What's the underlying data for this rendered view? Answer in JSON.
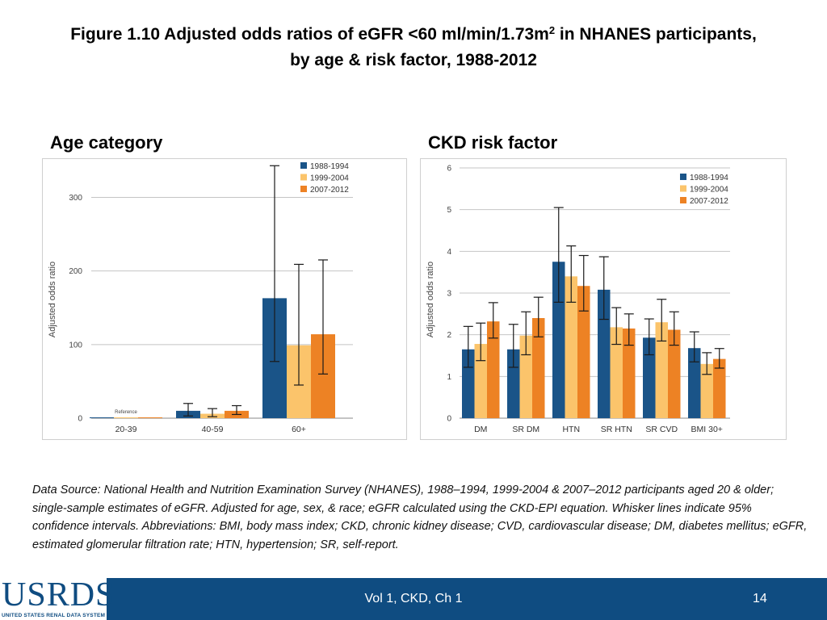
{
  "title": {
    "part1": "Figure 1.10 Adjusted odds ratios of eGFR <60 ml/min/1.73m",
    "sup": "2",
    "part2": " in NHANES participants,",
    "line2": "by age & risk factor, 1988-2012"
  },
  "panels": {
    "age_label": "Age category",
    "ckd_label": "CKD risk factor"
  },
  "chart_data": [
    {
      "type": "bar",
      "title": "Age category",
      "xlabel": "",
      "ylabel": "Adjusted odds ratio",
      "ylim": [
        0,
        340
      ],
      "yticks": [
        0,
        100,
        200,
        300
      ],
      "categories": [
        "20-39",
        "40-59",
        "60+"
      ],
      "series": [
        {
          "name": "1988-1994",
          "color": "#1a5488",
          "values": [
            1,
            10,
            163
          ],
          "ci_low": [
            null,
            3,
            77
          ],
          "ci_high": [
            null,
            20,
            343
          ]
        },
        {
          "name": "1999-2004",
          "color": "#fbc46b",
          "values": [
            1,
            6,
            99
          ],
          "ci_low": [
            null,
            2,
            45
          ],
          "ci_high": [
            null,
            13,
            209
          ]
        },
        {
          "name": "2007-2012",
          "color": "#ed8224",
          "values": [
            1,
            10,
            114
          ],
          "ci_low": [
            null,
            5,
            60
          ],
          "ci_high": [
            null,
            17,
            215
          ]
        }
      ],
      "annotations": [
        "Reference"
      ],
      "legend": "top-right"
    },
    {
      "type": "bar",
      "title": "CKD risk factor",
      "xlabel": "",
      "ylabel": "Adjusted odds ratio",
      "ylim": [
        0,
        6
      ],
      "yticks": [
        0,
        1,
        2,
        3,
        4,
        5,
        6
      ],
      "categories": [
        "DM",
        "SR DM",
        "HTN",
        "SR HTN",
        "SR CVD",
        "BMI 30+"
      ],
      "series": [
        {
          "name": "1988-1994",
          "color": "#1a5488",
          "values": [
            1.65,
            1.65,
            3.75,
            3.08,
            1.93,
            1.68
          ],
          "ci_low": [
            1.22,
            1.22,
            2.78,
            2.37,
            1.52,
            1.35
          ],
          "ci_high": [
            2.2,
            2.25,
            5.05,
            3.87,
            2.38,
            2.07
          ]
        },
        {
          "name": "1999-2004",
          "color": "#fbc46b",
          "values": [
            1.78,
            1.98,
            3.4,
            2.18,
            2.3,
            1.3
          ],
          "ci_low": [
            1.38,
            1.52,
            2.78,
            1.77,
            1.85,
            1.05
          ],
          "ci_high": [
            2.28,
            2.55,
            4.13,
            2.65,
            2.85,
            1.57
          ]
        },
        {
          "name": "2007-2012",
          "color": "#ed8224",
          "values": [
            2.32,
            2.4,
            3.17,
            2.15,
            2.12,
            1.42
          ],
          "ci_low": [
            1.92,
            1.95,
            2.57,
            1.75,
            1.75,
            1.2
          ],
          "ci_high": [
            2.77,
            2.9,
            3.9,
            2.5,
            2.55,
            1.67
          ]
        }
      ],
      "legend": "top-right"
    }
  ],
  "note": "Data Source: National Health and Nutrition Examination Survey (NHANES), 1988–1994, 1999-2004 & 2007–2012 participants aged 20 & older; single-sample estimates of eGFR. Adjusted for age, sex, & race; eGFR calculated using the CKD-EPI equation. Whisker lines indicate 95% confidence intervals. Abbreviations:  BMI, body mass index; CKD, chronic kidney disease; CVD, cardiovascular disease; DM, diabetes mellitus; eGFR, estimated glomerular filtration rate; HTN, hypertension; SR, self-report.",
  "footer": {
    "logo": "USRDS",
    "logo_sub": "UNITED STATES RENAL DATA SYSTEM",
    "center": "Vol 1, CKD, Ch 1",
    "page": "14"
  }
}
